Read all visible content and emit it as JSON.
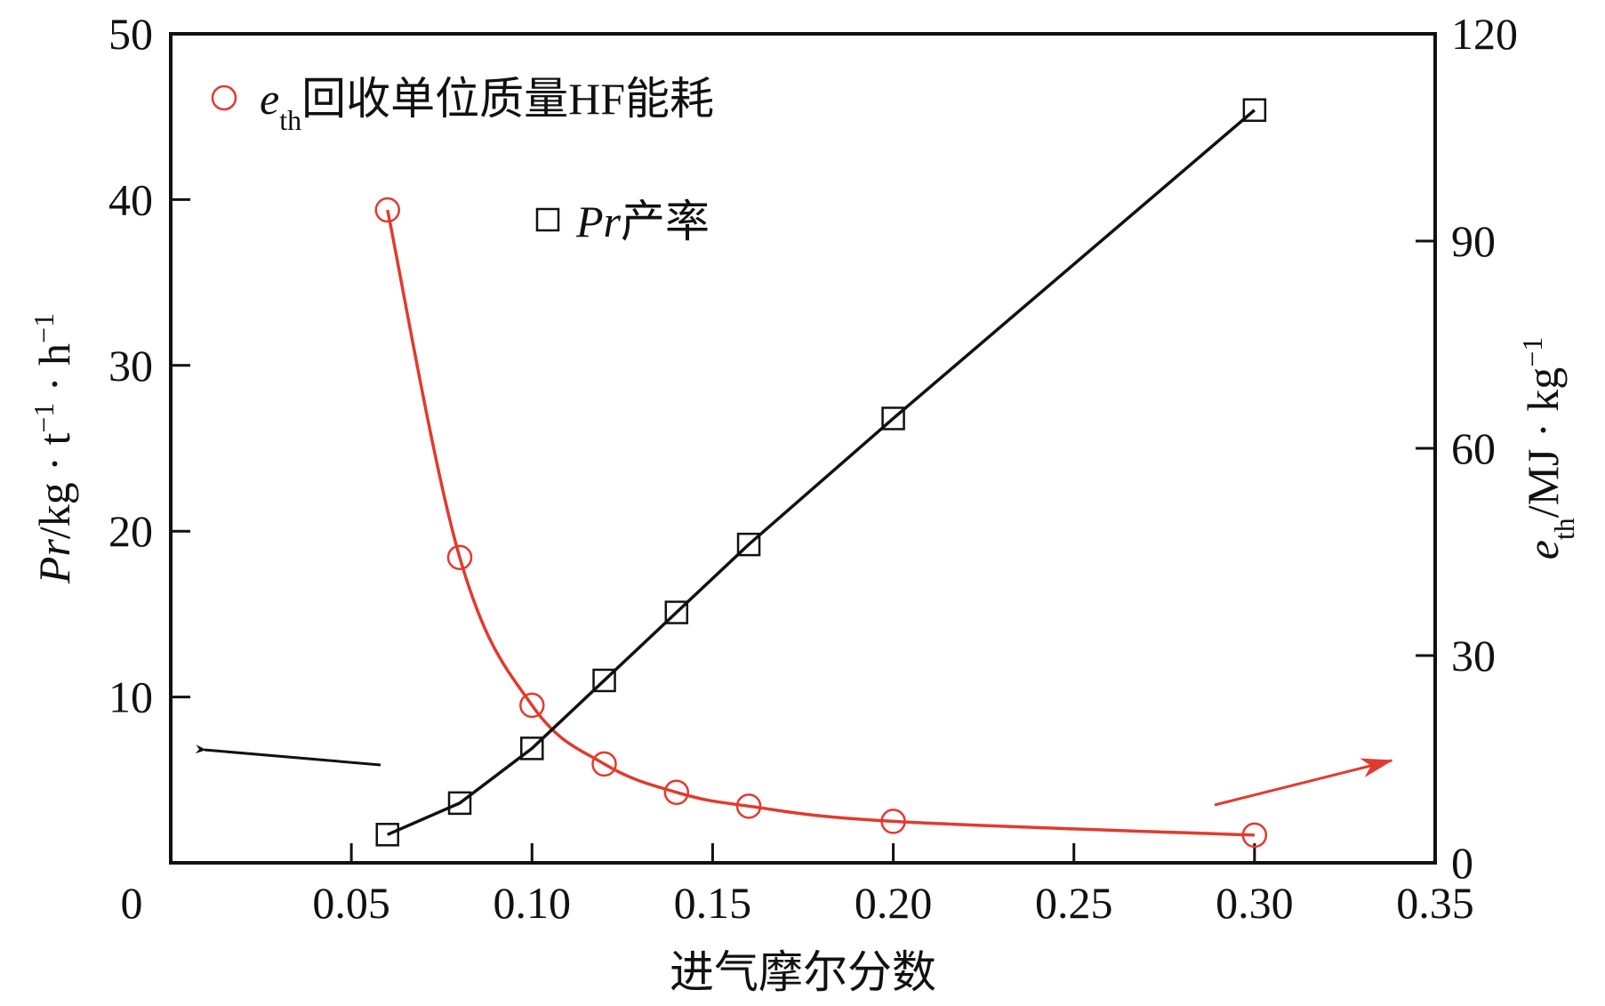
{
  "chart_data": {
    "type": "line",
    "xlabel": "进气摩尔分数",
    "x_ticks": [
      "0",
      "0.05",
      "0.10",
      "0.15",
      "0.20",
      "0.25",
      "0.30",
      "0.35"
    ],
    "x_tick_values": [
      0,
      0.05,
      0.1,
      0.15,
      0.2,
      0.25,
      0.3,
      0.35
    ],
    "xlim": [
      0,
      0.35
    ],
    "y_left": {
      "label_main": "Pr",
      "label_rest": "/kg · t",
      "label_sup1": "−1",
      "label_mid": " · h",
      "label_sup2": "−1",
      "ticks": [
        "10",
        "20",
        "30",
        "40",
        "50"
      ],
      "tick_values": [
        10,
        20,
        30,
        40,
        50
      ],
      "ylim": [
        0,
        50
      ]
    },
    "y_right": {
      "label_main": "e",
      "label_sub": "th",
      "label_rest": "/MJ · kg",
      "label_sup": "−1",
      "ticks": [
        "0",
        "30",
        "60",
        "90",
        "120"
      ],
      "tick_values": [
        0,
        30,
        60,
        90,
        120
      ],
      "ylim": [
        0,
        120
      ]
    },
    "series": [
      {
        "name_main": "e",
        "name_sub": "th",
        "name_rest": "回收单位质量HF能耗",
        "axis": "right",
        "color": "#e23a2e",
        "marker": "circle",
        "x": [
          0.06,
          0.08,
          0.1,
          0.12,
          0.14,
          0.16,
          0.2,
          0.3
        ],
        "y": [
          94.5,
          44.2,
          22.8,
          14.3,
          10.2,
          8.2,
          6.0,
          4.0
        ]
      },
      {
        "name_main": "Pr",
        "name_rest": "产率",
        "axis": "left",
        "color": "#111111",
        "marker": "square",
        "x": [
          0.06,
          0.08,
          0.1,
          0.12,
          0.14,
          0.16,
          0.2,
          0.3
        ],
        "y": [
          1.7,
          3.6,
          6.9,
          11.0,
          15.1,
          19.2,
          26.8,
          45.4
        ]
      }
    ],
    "annotations": [
      {
        "type": "arrow",
        "color": "#111111",
        "points_to": "left axis"
      },
      {
        "type": "arrow",
        "color": "#e23a2e",
        "points_to": "right axis"
      }
    ],
    "grid": false,
    "legend": "top-left"
  }
}
